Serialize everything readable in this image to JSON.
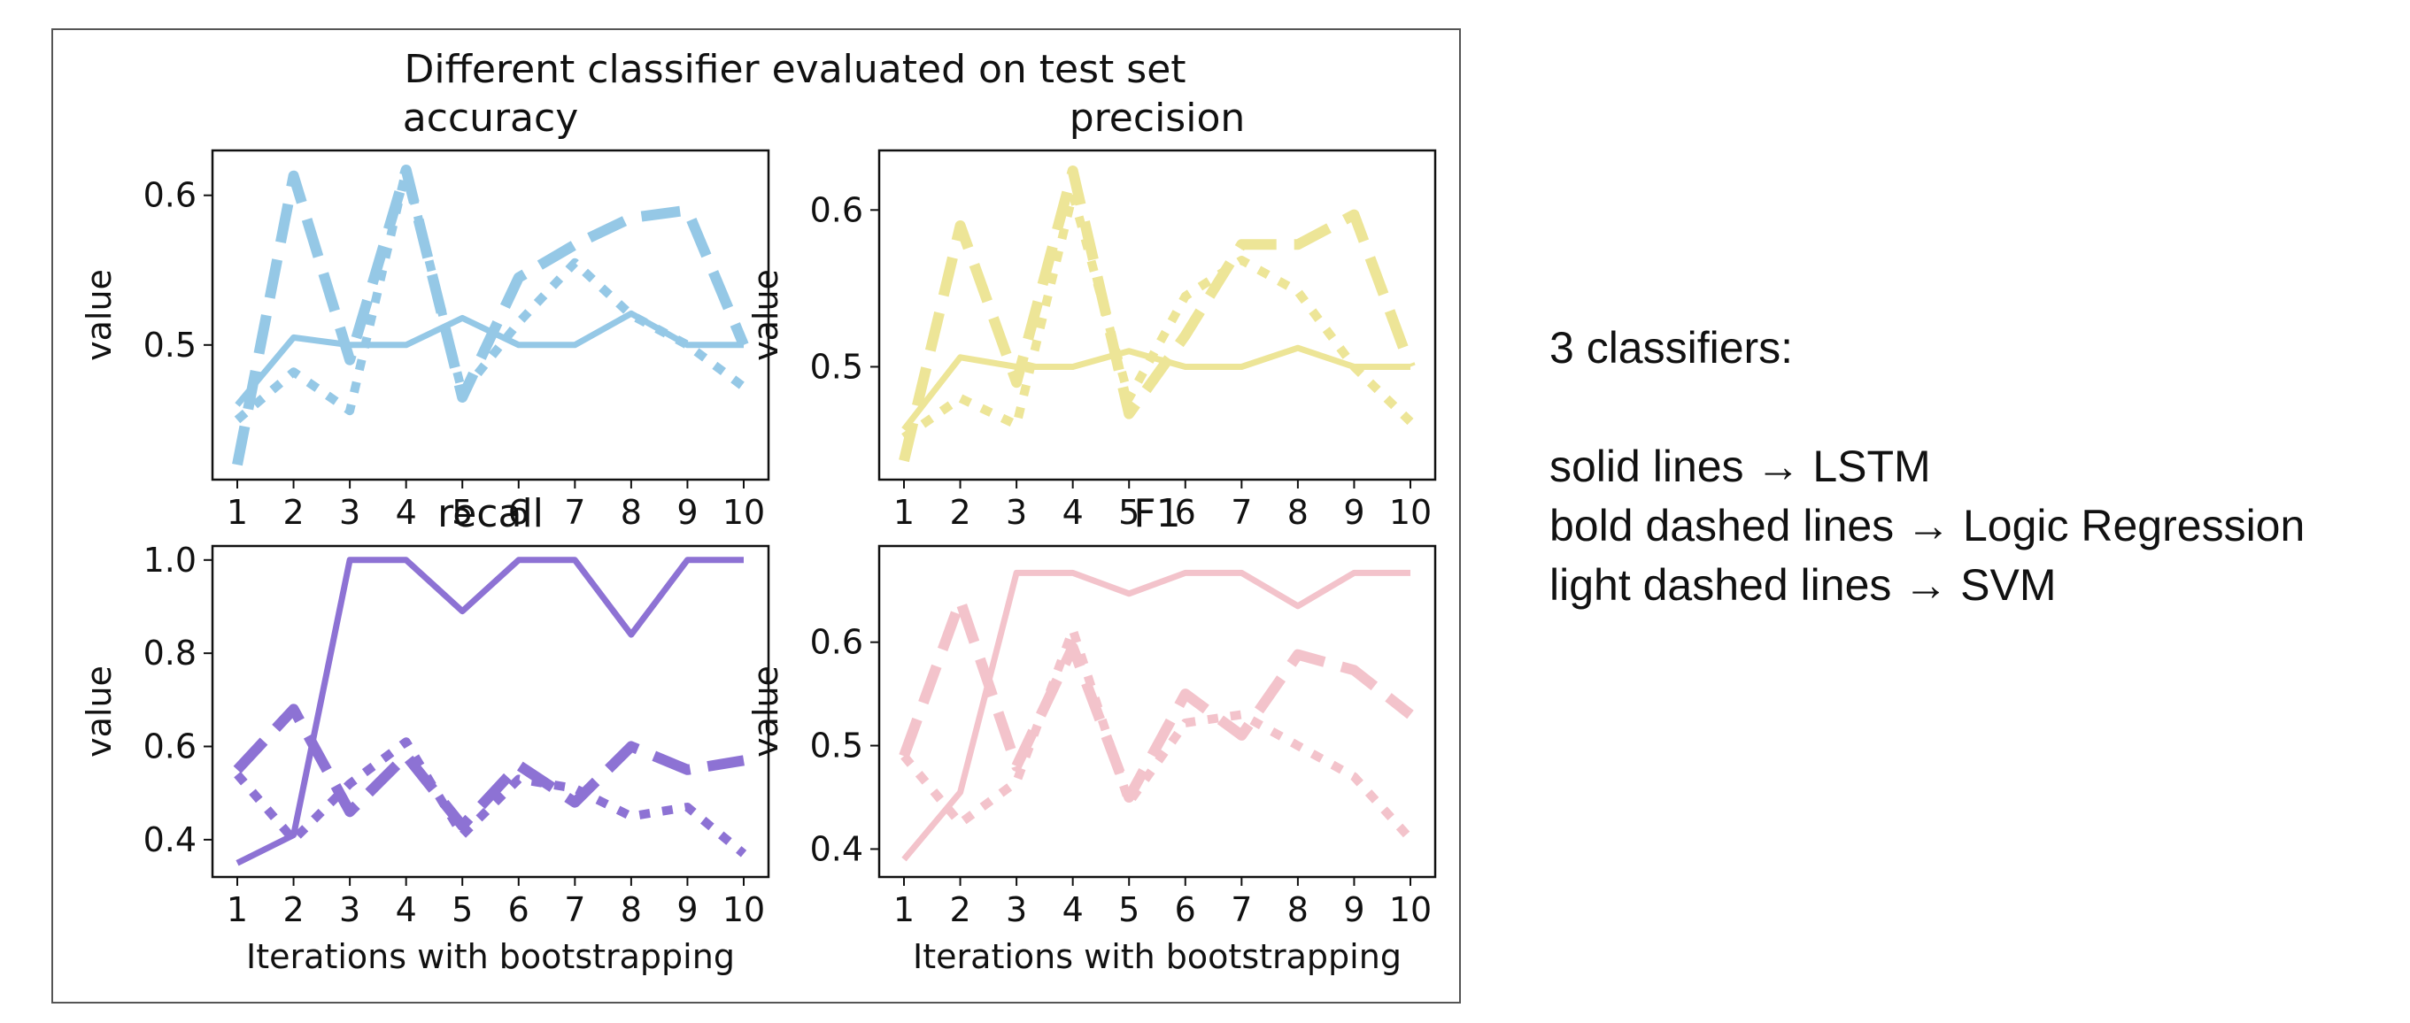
{
  "figure_title": "Different classifier evaluated on test set",
  "notes": {
    "heading": "3 classifiers:",
    "lines": [
      "solid lines → LSTM",
      "bold dashed lines → Logic Regression",
      "light dashed lines → SVM"
    ]
  },
  "chart_data": [
    {
      "type": "line",
      "title": "accuracy",
      "xlabel": "",
      "ylabel": "value",
      "color": "#95c8e6",
      "x": [
        1,
        2,
        3,
        4,
        5,
        6,
        7,
        8,
        9,
        10
      ],
      "ylim": [
        0.41,
        0.63
      ],
      "yticks": [
        0.5,
        0.6
      ],
      "series": [
        {
          "style": "solid",
          "values": [
            0.46,
            0.505,
            0.5,
            0.5,
            0.518,
            0.5,
            0.5,
            0.521,
            0.5,
            0.5
          ]
        },
        {
          "style": "dashed",
          "values": [
            0.42,
            0.613,
            0.49,
            0.617,
            0.465,
            0.545,
            0.567,
            0.585,
            0.59,
            0.5
          ]
        },
        {
          "style": "dotted",
          "values": [
            0.45,
            0.482,
            0.456,
            0.617,
            0.468,
            0.515,
            0.555,
            0.52,
            0.5,
            0.472
          ]
        }
      ]
    },
    {
      "type": "line",
      "title": "precision",
      "xlabel": "",
      "ylabel": "value",
      "color": "#ede597",
      "x": [
        1,
        2,
        3,
        4,
        5,
        6,
        7,
        8,
        9,
        10
      ],
      "ylim": [
        0.428,
        0.638
      ],
      "yticks": [
        0.5,
        0.6
      ],
      "series": [
        {
          "style": "solid",
          "values": [
            0.46,
            0.506,
            0.5,
            0.5,
            0.51,
            0.5,
            0.5,
            0.512,
            0.5,
            0.5
          ]
        },
        {
          "style": "dashed",
          "values": [
            0.44,
            0.59,
            0.49,
            0.625,
            0.47,
            0.52,
            0.578,
            0.578,
            0.597,
            0.5
          ]
        },
        {
          "style": "dotted",
          "values": [
            0.455,
            0.48,
            0.463,
            0.61,
            0.48,
            0.545,
            0.568,
            0.548,
            0.5,
            0.465
          ]
        }
      ]
    },
    {
      "type": "line",
      "title": "recall",
      "xlabel": "Iterations with bootstrapping",
      "ylabel": "value",
      "color": "#8d72d4",
      "x": [
        1,
        2,
        3,
        4,
        5,
        6,
        7,
        8,
        9,
        10
      ],
      "ylim": [
        0.32,
        1.03
      ],
      "yticks": [
        0.4,
        0.6,
        0.8,
        1.0
      ],
      "series": [
        {
          "style": "solid",
          "values": [
            0.35,
            0.41,
            1.0,
            1.0,
            0.89,
            1.0,
            1.0,
            0.84,
            1.0,
            1.0
          ]
        },
        {
          "style": "dashed",
          "values": [
            0.55,
            0.68,
            0.46,
            0.58,
            0.43,
            0.56,
            0.48,
            0.6,
            0.55,
            0.57
          ]
        },
        {
          "style": "dotted",
          "values": [
            0.54,
            0.4,
            0.52,
            0.61,
            0.41,
            0.53,
            0.51,
            0.45,
            0.47,
            0.37
          ]
        }
      ]
    },
    {
      "type": "line",
      "title": "F1",
      "xlabel": "Iterations with bootstrapping",
      "ylabel": "value",
      "color": "#f3c3cb",
      "x": [
        1,
        2,
        3,
        4,
        5,
        6,
        7,
        8,
        9,
        10
      ],
      "ylim": [
        0.373,
        0.693
      ],
      "yticks": [
        0.4,
        0.5,
        0.6
      ],
      "series": [
        {
          "style": "solid",
          "values": [
            0.39,
            0.455,
            0.667,
            0.667,
            0.647,
            0.667,
            0.667,
            0.635,
            0.667,
            0.667
          ]
        },
        {
          "style": "dashed",
          "values": [
            0.49,
            0.64,
            0.48,
            0.595,
            0.45,
            0.55,
            0.51,
            0.588,
            0.573,
            0.53
          ]
        },
        {
          "style": "dotted",
          "values": [
            0.49,
            0.425,
            0.465,
            0.612,
            0.445,
            0.522,
            0.53,
            0.5,
            0.47,
            0.41
          ]
        }
      ]
    }
  ]
}
